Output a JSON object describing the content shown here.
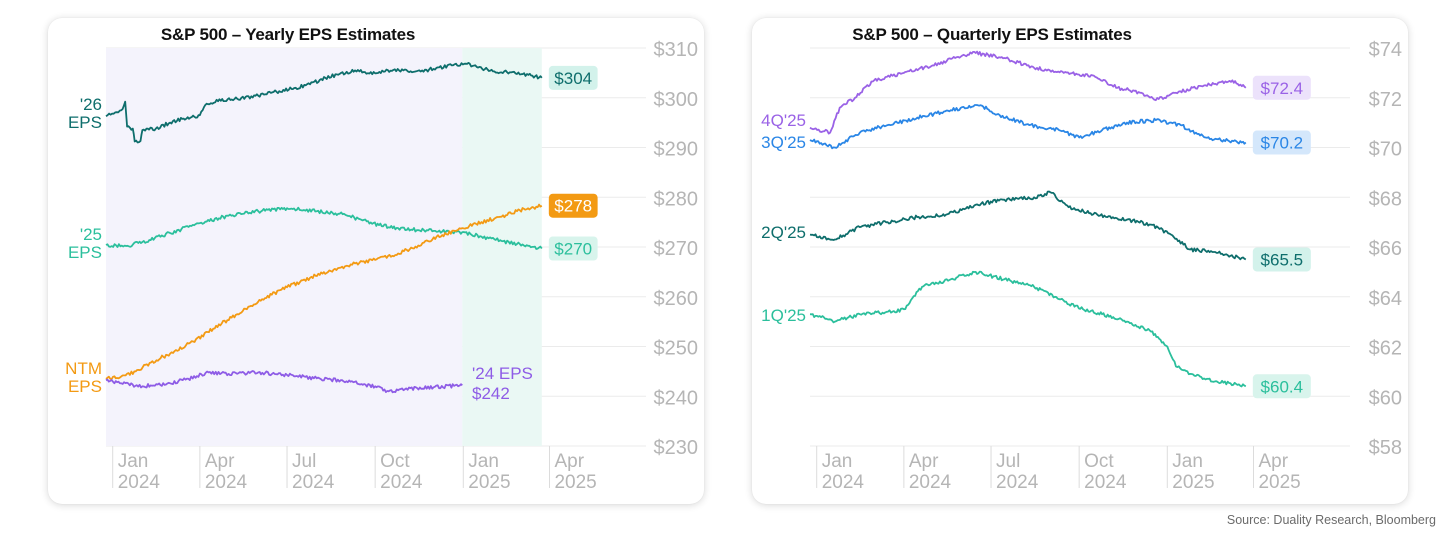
{
  "source": "Source: Duality Research, Bloomberg",
  "chart_data": [
    {
      "type": "line",
      "title": "S&P 500 – Yearly EPS Estimates",
      "y_ticks": [
        "$310",
        "$300",
        "$290",
        "$280",
        "$270",
        "$260",
        "$250",
        "$240",
        "$230"
      ],
      "ylim": [
        230,
        310
      ],
      "x_ticks": [
        {
          "month": "Jan",
          "year": "2024",
          "date": "2024-01-01"
        },
        {
          "month": "Apr",
          "year": "2024",
          "date": "2024-04-01"
        },
        {
          "month": "Jul",
          "year": "2024",
          "date": "2024-07-01"
        },
        {
          "month": "Oct",
          "year": "2024",
          "date": "2024-10-01"
        },
        {
          "month": "Jan",
          "year": "2025",
          "date": "2025-01-01"
        },
        {
          "month": "Apr",
          "year": "2025",
          "date": "2025-04-01"
        }
      ],
      "xlim": [
        "2023-12-25",
        "2025-05-30"
      ],
      "shaded_regions": [
        {
          "x": [
            "2023-12-25",
            "2024-12-31"
          ],
          "color": "#f4f3fc",
          "series": "'25 EPS"
        },
        {
          "x": [
            "2024-12-31",
            "2025-03-24"
          ],
          "color": "#eaf8f4",
          "series": "'26 EPS"
        }
      ],
      "series": [
        {
          "name_lines": [
            "'26",
            "EPS"
          ],
          "color": "#0e6e6c",
          "end_label": "$304",
          "end_label_bg": "#d3f2eb",
          "end_label_color": "#0e6e6c",
          "points": [
            [
              "2023-12-25",
              296.3
            ],
            [
              "2024-01-02",
              296.8
            ],
            [
              "2024-01-10",
              297.5
            ],
            [
              "2024-01-14",
              299.2
            ],
            [
              "2024-01-16",
              294.2
            ],
            [
              "2024-01-22",
              293.8
            ],
            [
              "2024-01-24",
              291.2
            ],
            [
              "2024-01-30",
              291.3
            ],
            [
              "2024-02-01",
              293.5
            ],
            [
              "2024-02-15",
              293.8
            ],
            [
              "2024-03-01",
              295.0
            ],
            [
              "2024-03-15",
              295.8
            ],
            [
              "2024-04-01",
              296.5
            ],
            [
              "2024-04-08",
              298.8
            ],
            [
              "2024-04-20",
              299.3
            ],
            [
              "2024-05-10",
              299.8
            ],
            [
              "2024-06-01",
              300.4
            ],
            [
              "2024-06-20",
              301.2
            ],
            [
              "2024-07-10",
              302.0
            ],
            [
              "2024-07-25",
              302.7
            ],
            [
              "2024-08-10",
              304.0
            ],
            [
              "2024-08-25",
              304.8
            ],
            [
              "2024-09-10",
              305.5
            ],
            [
              "2024-10-01",
              304.9
            ],
            [
              "2024-10-20",
              305.6
            ],
            [
              "2024-11-10",
              305.2
            ],
            [
              "2024-12-01",
              305.8
            ],
            [
              "2024-12-20",
              306.5
            ],
            [
              "2025-01-05",
              306.8
            ],
            [
              "2025-01-15",
              306.2
            ],
            [
              "2025-02-01",
              305.3
            ],
            [
              "2025-02-20",
              305.1
            ],
            [
              "2025-03-10",
              304.6
            ],
            [
              "2025-03-24",
              304.0
            ]
          ]
        },
        {
          "name_lines": [
            "'25",
            "EPS"
          ],
          "color": "#2bbf9c",
          "end_label": "$270",
          "end_label_bg": "#d8f4ec",
          "end_label_color": "#2bbf9c",
          "points": [
            [
              "2023-12-25",
              270.4
            ],
            [
              "2024-01-15",
              270.2
            ],
            [
              "2024-02-01",
              271.0
            ],
            [
              "2024-03-01",
              272.8
            ],
            [
              "2024-04-01",
              274.8
            ],
            [
              "2024-05-01",
              276.3
            ],
            [
              "2024-06-01",
              277.2
            ],
            [
              "2024-07-01",
              277.8
            ],
            [
              "2024-08-01",
              277.2
            ],
            [
              "2024-08-25",
              276.7
            ],
            [
              "2024-09-15",
              275.6
            ],
            [
              "2024-10-05",
              274.4
            ],
            [
              "2024-10-25",
              273.8
            ],
            [
              "2024-11-15",
              273.4
            ],
            [
              "2024-12-10",
              273.1
            ],
            [
              "2024-12-31",
              273.0
            ],
            [
              "2025-01-20",
              272.1
            ],
            [
              "2025-02-10",
              271.2
            ],
            [
              "2025-03-01",
              270.6
            ],
            [
              "2025-03-24",
              269.7
            ]
          ]
        },
        {
          "name_lines": [
            "NTM",
            "EPS"
          ],
          "color": "#f39a13",
          "end_label": "$278",
          "end_label_bg": "#f39a13",
          "end_label_color": "#ffffff",
          "points": [
            [
              "2023-12-25",
              243.5
            ],
            [
              "2024-01-10",
              244.0
            ],
            [
              "2024-01-25",
              245.0
            ],
            [
              "2024-02-10",
              246.8
            ],
            [
              "2024-03-01",
              248.6
            ],
            [
              "2024-03-25",
              251.0
            ],
            [
              "2024-04-15",
              253.6
            ],
            [
              "2024-05-10",
              256.5
            ],
            [
              "2024-06-05",
              259.5
            ],
            [
              "2024-07-01",
              261.9
            ],
            [
              "2024-07-25",
              263.8
            ],
            [
              "2024-08-20",
              265.6
            ],
            [
              "2024-09-10",
              266.7
            ],
            [
              "2024-10-01",
              267.4
            ],
            [
              "2024-10-25",
              268.7
            ],
            [
              "2024-11-15",
              270.3
            ],
            [
              "2024-12-10",
              272.4
            ],
            [
              "2024-12-31",
              273.8
            ],
            [
              "2025-01-20",
              275.0
            ],
            [
              "2025-02-10",
              276.1
            ],
            [
              "2025-03-01",
              277.4
            ],
            [
              "2025-03-24",
              278.3
            ]
          ]
        },
        {
          "name_lines": [
            "'24 EPS"
          ],
          "color": "#8e5ce6",
          "end_label": "$242",
          "end_label_style": "plain",
          "points": [
            [
              "2023-12-25",
              243.2
            ],
            [
              "2024-01-10",
              242.6
            ],
            [
              "2024-02-01",
              242.0
            ],
            [
              "2024-03-01",
              242.6
            ],
            [
              "2024-03-20",
              243.5
            ],
            [
              "2024-04-10",
              244.8
            ],
            [
              "2024-05-01",
              244.5
            ],
            [
              "2024-06-01",
              244.8
            ],
            [
              "2024-07-01",
              244.3
            ],
            [
              "2024-08-01",
              243.6
            ],
            [
              "2024-09-01",
              243.0
            ],
            [
              "2024-10-01",
              242.0
            ],
            [
              "2024-10-15",
              241.0
            ],
            [
              "2024-11-01",
              241.4
            ],
            [
              "2024-12-01",
              241.8
            ],
            [
              "2024-12-31",
              242.2
            ]
          ]
        }
      ]
    },
    {
      "type": "line",
      "title": "S&P 500 – Quarterly EPS Estimates",
      "y_ticks": [
        "$74",
        "$72",
        "$70",
        "$68",
        "$66",
        "$64",
        "$62",
        "$60",
        "$58"
      ],
      "ylim": [
        58,
        74
      ],
      "x_ticks": [
        {
          "month": "Jan",
          "year": "2024",
          "date": "2024-01-01"
        },
        {
          "month": "Apr",
          "year": "2024",
          "date": "2024-04-01"
        },
        {
          "month": "Jul",
          "year": "2024",
          "date": "2024-07-01"
        },
        {
          "month": "Oct",
          "year": "2024",
          "date": "2024-10-01"
        },
        {
          "month": "Jan",
          "year": "2025",
          "date": "2025-01-01"
        },
        {
          "month": "Apr",
          "year": "2025",
          "date": "2025-04-01"
        }
      ],
      "xlim": [
        "2023-12-25",
        "2025-05-30"
      ],
      "series": [
        {
          "name_lines": [
            "4Q'25"
          ],
          "color": "#9a62e6",
          "end_label": "$72.4",
          "end_label_bg": "#ece2fb",
          "end_label_color": "#9a62e6",
          "points": [
            [
              "2023-12-25",
              70.8
            ],
            [
              "2024-01-15",
              70.6
            ],
            [
              "2024-01-25",
              71.6
            ],
            [
              "2024-02-10",
              72.0
            ],
            [
              "2024-03-01",
              72.7
            ],
            [
              "2024-04-01",
              73.0
            ],
            [
              "2024-05-01",
              73.3
            ],
            [
              "2024-06-01",
              73.7
            ],
            [
              "2024-06-15",
              73.8
            ],
            [
              "2024-07-15",
              73.6
            ],
            [
              "2024-08-15",
              73.2
            ],
            [
              "2024-09-15",
              73.0
            ],
            [
              "2024-10-15",
              72.9
            ],
            [
              "2024-11-10",
              72.4
            ],
            [
              "2024-12-05",
              72.2
            ],
            [
              "2024-12-20",
              71.9
            ],
            [
              "2025-01-10",
              72.2
            ],
            [
              "2025-02-10",
              72.5
            ],
            [
              "2025-03-10",
              72.7
            ],
            [
              "2025-03-24",
              72.4
            ]
          ]
        },
        {
          "name_lines": [
            "3Q'25"
          ],
          "color": "#2a86e6",
          "end_label": "$70.2",
          "end_label_bg": "#d4e7fb",
          "end_label_color": "#2a86e6",
          "points": [
            [
              "2023-12-25",
              70.3
            ],
            [
              "2024-01-20",
              70.0
            ],
            [
              "2024-02-15",
              70.6
            ],
            [
              "2024-03-15",
              70.9
            ],
            [
              "2024-04-15",
              71.2
            ],
            [
              "2024-05-20",
              71.5
            ],
            [
              "2024-06-20",
              71.7
            ],
            [
              "2024-07-10",
              71.3
            ],
            [
              "2024-08-10",
              70.9
            ],
            [
              "2024-09-10",
              70.7
            ],
            [
              "2024-10-01",
              70.4
            ],
            [
              "2024-10-25",
              70.7
            ],
            [
              "2024-11-20",
              71.0
            ],
            [
              "2024-12-20",
              71.1
            ],
            [
              "2025-01-15",
              70.9
            ],
            [
              "2025-02-10",
              70.4
            ],
            [
              "2025-03-01",
              70.3
            ],
            [
              "2025-03-24",
              70.2
            ]
          ]
        },
        {
          "name_lines": [
            "2Q'25"
          ],
          "color": "#0e6e6c",
          "end_label": "$65.5",
          "end_label_bg": "#d3f2eb",
          "end_label_color": "#0e6e6c",
          "points": [
            [
              "2023-12-25",
              66.5
            ],
            [
              "2024-01-20",
              66.3
            ],
            [
              "2024-02-15",
              66.8
            ],
            [
              "2024-03-15",
              67.0
            ],
            [
              "2024-04-15",
              67.2
            ],
            [
              "2024-05-15",
              67.3
            ],
            [
              "2024-06-15",
              67.7
            ],
            [
              "2024-07-15",
              67.9
            ],
            [
              "2024-08-15",
              68.0
            ],
            [
              "2024-09-01",
              68.2
            ],
            [
              "2024-09-20",
              67.6
            ],
            [
              "2024-10-20",
              67.3
            ],
            [
              "2024-11-20",
              67.1
            ],
            [
              "2024-12-15",
              66.9
            ],
            [
              "2025-01-05",
              66.5
            ],
            [
              "2025-01-25",
              65.9
            ],
            [
              "2025-02-20",
              65.8
            ],
            [
              "2025-03-24",
              65.5
            ]
          ]
        },
        {
          "name_lines": [
            "1Q'25"
          ],
          "color": "#2bbf9c",
          "end_label": "$60.4",
          "end_label_bg": "#d8f4ec",
          "end_label_color": "#2bbf9c",
          "points": [
            [
              "2023-12-25",
              63.3
            ],
            [
              "2024-01-20",
              63.0
            ],
            [
              "2024-02-15",
              63.3
            ],
            [
              "2024-03-20",
              63.4
            ],
            [
              "2024-04-01",
              63.5
            ],
            [
              "2024-04-20",
              64.4
            ],
            [
              "2024-05-20",
              64.7
            ],
            [
              "2024-06-15",
              65.0
            ],
            [
              "2024-07-15",
              64.7
            ],
            [
              "2024-08-15",
              64.4
            ],
            [
              "2024-09-10",
              63.9
            ],
            [
              "2024-10-05",
              63.5
            ],
            [
              "2024-10-25",
              63.3
            ],
            [
              "2024-11-20",
              63.0
            ],
            [
              "2024-12-15",
              62.6
            ],
            [
              "2025-01-01",
              62.0
            ],
            [
              "2025-01-10",
              61.2
            ],
            [
              "2025-01-25",
              60.9
            ],
            [
              "2025-02-20",
              60.6
            ],
            [
              "2025-03-24",
              60.4
            ]
          ]
        }
      ]
    }
  ]
}
